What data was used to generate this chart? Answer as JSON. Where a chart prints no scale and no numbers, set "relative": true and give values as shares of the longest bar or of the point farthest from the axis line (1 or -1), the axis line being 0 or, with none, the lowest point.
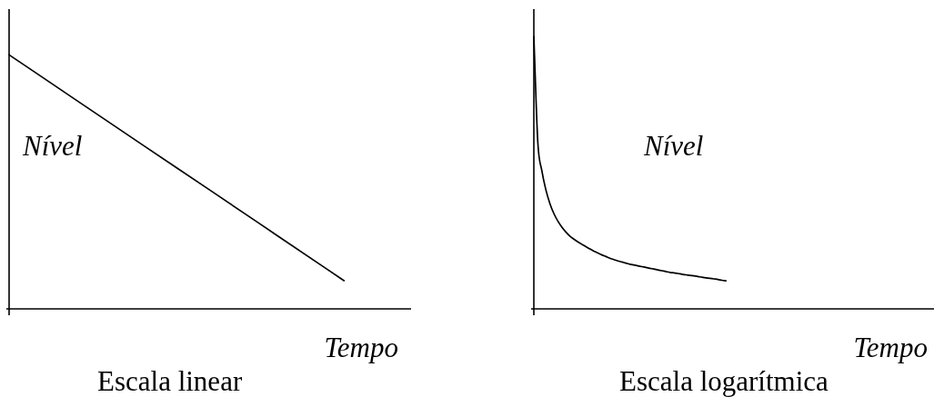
{
  "chart_data": [
    {
      "type": "line",
      "title": "Escala linear",
      "xlabel": "Tempo",
      "ylabel": "Nível",
      "relative": true,
      "marker": "none",
      "line_style": "solid",
      "color": "#000000",
      "categories": [
        null,
        null,
        null,
        null,
        null,
        null,
        null
      ],
      "values": [
        1,
        0.822,
        0.644,
        0.467,
        0.289,
        0.111,
        null
      ]
    },
    {
      "type": "line",
      "title": "Escala logarítmica",
      "xlabel": "Tempo",
      "ylabel": "Nível",
      "relative": true,
      "marker": "none",
      "line_style": "solid",
      "color": "#000000",
      "categories": [
        null,
        null,
        null,
        null,
        null,
        null,
        null,
        null,
        null,
        null,
        null,
        null,
        null,
        null,
        null,
        null,
        null,
        null,
        null,
        null,
        null,
        null,
        null,
        null,
        null,
        null,
        null,
        null,
        null,
        null,
        null,
        null,
        null,
        null,
        null,
        null,
        null,
        null,
        null,
        null,
        null,
        null,
        null,
        null,
        null,
        null,
        null,
        null,
        null,
        null,
        null,
        null,
        null,
        null,
        null,
        null,
        null,
        null,
        null,
        null,
        null,
        null,
        null,
        null,
        null,
        null,
        null,
        null,
        null,
        null,
        null,
        null,
        null,
        null,
        null,
        null,
        null,
        null,
        null,
        null,
        null,
        null,
        null,
        null,
        null,
        null,
        null,
        null,
        null,
        null,
        null,
        null,
        null,
        null,
        null,
        null,
        null,
        null,
        null,
        null,
        null
      ],
      "values": [
        1,
        0.61,
        0.507,
        0.437,
        0.387,
        0.35,
        0.322,
        0.3,
        0.282,
        0.267,
        0.256,
        0.246,
        0.237,
        0.228,
        0.22,
        0.212,
        0.205,
        0.198,
        0.192,
        0.186,
        0.181,
        0.176,
        0.172,
        0.168,
        0.164,
        0.161,
        0.158,
        0.155,
        0.152,
        0.149,
        0.146,
        0.143,
        0.14,
        0.137,
        0.134,
        0.132,
        0.13,
        0.127,
        0.125,
        0.123,
        0.121,
        0.119,
        0.116,
        0.114,
        0.112,
        0.11,
        0.108,
        0.105,
        0.103,
        null,
        null,
        null,
        null,
        null,
        null,
        null,
        null,
        null,
        null,
        null,
        null,
        null,
        null,
        null,
        null,
        null,
        null,
        null,
        null,
        null,
        null,
        null,
        null,
        null,
        null,
        null,
        null,
        null,
        null,
        null,
        null,
        null,
        null,
        null,
        null,
        null,
        null,
        null,
        null,
        null,
        null,
        null,
        null,
        null,
        null,
        null,
        null,
        null,
        null,
        null,
        null
      ]
    }
  ]
}
